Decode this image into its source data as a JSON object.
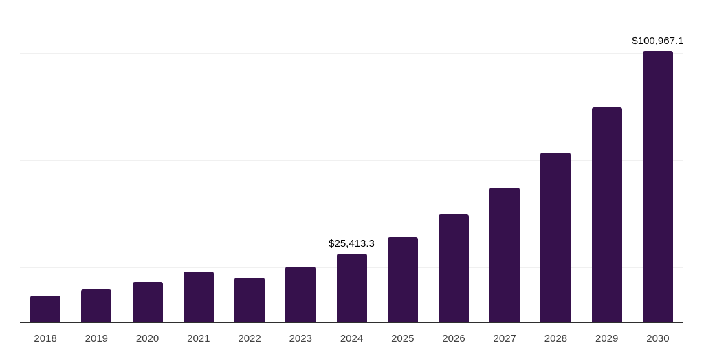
{
  "chart_data": {
    "type": "bar",
    "title": "",
    "xlabel": "",
    "ylabel": "",
    "categories": [
      "2018",
      "2019",
      "2020",
      "2021",
      "2022",
      "2023",
      "2024",
      "2025",
      "2026",
      "2027",
      "2028",
      "2029",
      "2030"
    ],
    "values": [
      9700,
      12100,
      14900,
      18600,
      16500,
      20600,
      25413.3,
      31600,
      39900,
      50100,
      63200,
      80100,
      100967.1
    ],
    "value_labels": [
      "",
      "",
      "",
      "",
      "",
      "",
      "$25,413.3",
      "",
      "",
      "",
      "",
      "",
      "$100,967.1"
    ],
    "ylim": [
      0,
      120000
    ],
    "grid_interval": 20000,
    "grid": true,
    "legend": false,
    "colors": {
      "bar": "#36114C",
      "axis_line": "#2F2F2F",
      "gridline": "#F0F0F0",
      "value_label": "#000000",
      "tick_label": "#404040",
      "background": "#FFFFFF"
    }
  }
}
